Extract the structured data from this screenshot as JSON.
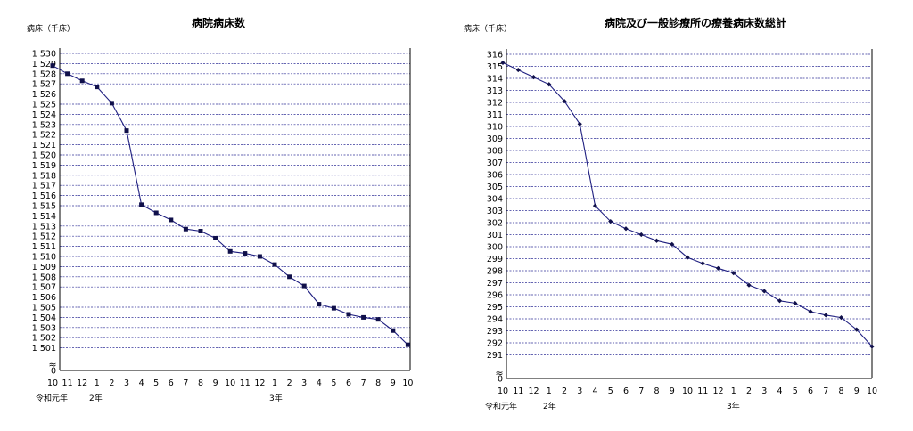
{
  "chart_data": [
    {
      "type": "line",
      "title": "病院病床数",
      "ylabel": "病床（千床）",
      "ylim": [
        1500,
        1530
      ],
      "y_ticks": [
        "0",
        "1 501",
        "1 502",
        "1 503",
        "1 504",
        "1 505",
        "1 506",
        "1 507",
        "1 508",
        "1 509",
        "1 510",
        "1 511",
        "1 512",
        "1 513",
        "1 514",
        "1 515",
        "1 516",
        "1 517",
        "1 518",
        "1 519",
        "1 520",
        "1 521",
        "1 522",
        "1 523",
        "1 524",
        "1 525",
        "1 526",
        "1 527",
        "1 528",
        "1 529",
        "1 530"
      ],
      "axis_break": "≈",
      "categories": [
        "10",
        "11",
        "12",
        "1",
        "2",
        "3",
        "4",
        "5",
        "6",
        "7",
        "8",
        "9",
        "10",
        "11",
        "12",
        "1",
        "2",
        "3",
        "4",
        "5",
        "6",
        "7",
        "8",
        "9",
        "10"
      ],
      "year_labels": [
        "令和元年",
        "2年",
        "3年"
      ],
      "values": [
        1528.8,
        1528.0,
        1527.3,
        1526.7,
        1525.1,
        1522.4,
        1515.1,
        1514.3,
        1513.6,
        1512.7,
        1512.5,
        1511.8,
        1510.5,
        1510.3,
        1510.0,
        1509.2,
        1508.0,
        1507.1,
        1505.3,
        1504.9,
        1504.3,
        1504.0,
        1503.8,
        1502.7,
        1501.3
      ],
      "grid": true,
      "marker": "square",
      "colors": {
        "line": "#1f1f80",
        "marker": "#10104a",
        "grid": "#333399"
      }
    },
    {
      "type": "line",
      "title": "病院及び一般診療所の療養病床数総計",
      "ylabel": "病床（千床）",
      "ylim": [
        290,
        316
      ],
      "y_ticks": [
        "0",
        "291",
        "292",
        "293",
        "294",
        "295",
        "296",
        "297",
        "298",
        "299",
        "300",
        "301",
        "302",
        "303",
        "304",
        "305",
        "306",
        "307",
        "308",
        "309",
        "310",
        "311",
        "312",
        "313",
        "314",
        "315",
        "316"
      ],
      "axis_break": "≈",
      "categories": [
        "10",
        "11",
        "12",
        "1",
        "2",
        "3",
        "4",
        "5",
        "6",
        "7",
        "8",
        "9",
        "10",
        "11",
        "12",
        "1",
        "2",
        "3",
        "4",
        "5",
        "6",
        "7",
        "8",
        "9",
        "10"
      ],
      "year_labels": [
        "令和元年",
        "2年",
        "3年"
      ],
      "values": [
        315.3,
        314.7,
        314.1,
        313.5,
        312.1,
        310.2,
        303.4,
        302.1,
        301.5,
        301.0,
        300.5,
        300.2,
        299.1,
        298.6,
        298.2,
        297.8,
        296.8,
        296.3,
        295.5,
        295.3,
        294.6,
        294.3,
        294.1,
        293.1,
        291.7
      ],
      "grid": true,
      "marker": "diamond",
      "colors": {
        "line": "#1f1f80",
        "marker": "#10104a",
        "grid": "#333399"
      }
    }
  ]
}
